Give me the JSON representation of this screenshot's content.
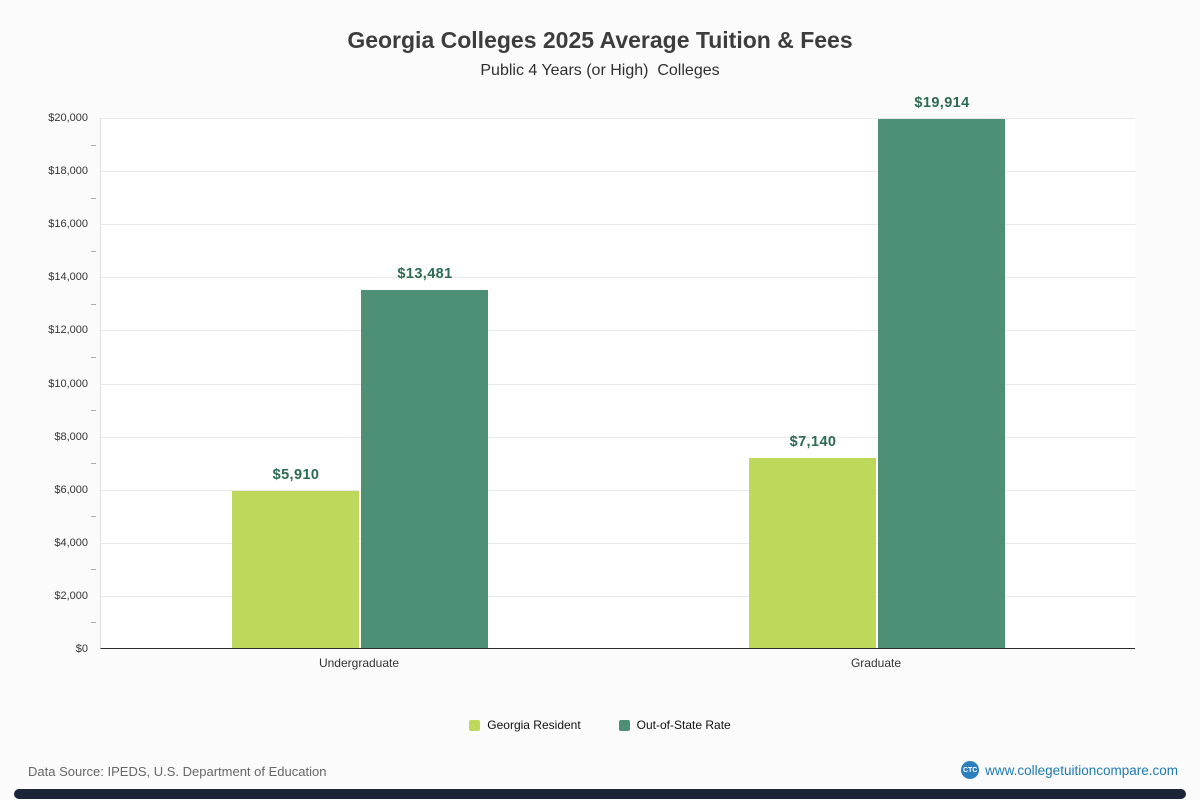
{
  "page": {
    "footer": {
      "data_source": "Data Source: IPEDS, U.S. Department of Education",
      "website": "www.collegetuitioncompare.com",
      "logo_text": "CTC"
    }
  },
  "chart_data": {
    "type": "bar",
    "title": "Georgia Colleges 2025 Average Tuition & Fees",
    "subtitle": "Public 4 Years (or High)  Colleges",
    "categories": [
      "Undergraduate",
      "Graduate"
    ],
    "series": [
      {
        "name": "Georgia Resident",
        "color": "#bed85b",
        "values": [
          5910,
          7140
        ]
      },
      {
        "name": "Out-of-State Rate",
        "color": "#4e9076",
        "values": [
          13481,
          19914
        ]
      }
    ],
    "value_labels": [
      "$5,910",
      "$13,481",
      "$7,140",
      "$19,914"
    ],
    "ylabel": "",
    "xlabel": "",
    "ylim": [
      0,
      20000
    ],
    "ytick_step": 2000,
    "ytick_minor_step": 1000,
    "grid": true,
    "legend_position": "bottom",
    "value_label_color": "#2d6a52"
  }
}
